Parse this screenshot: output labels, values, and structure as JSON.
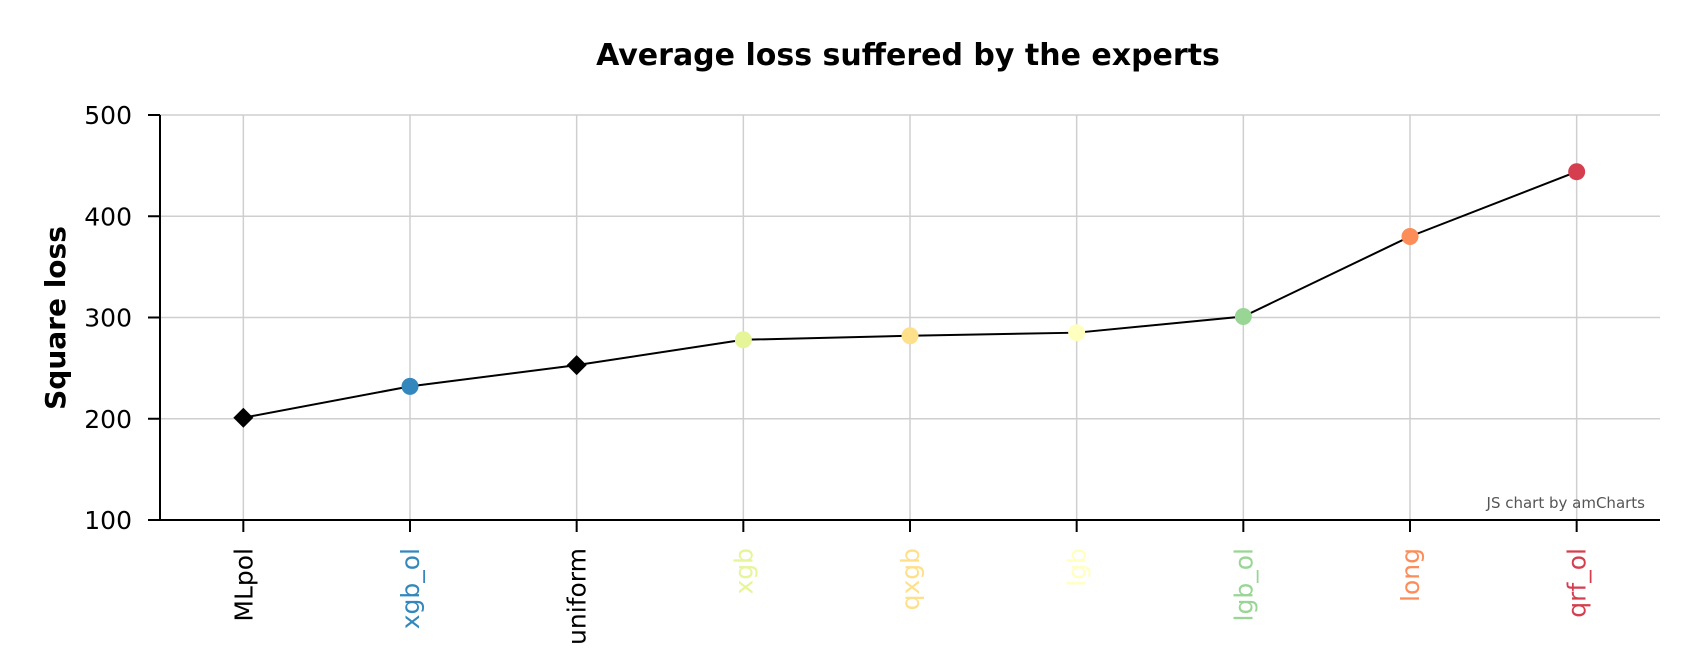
{
  "chart_data": {
    "type": "line",
    "title": "Average loss suffered by the experts",
    "xlabel": "",
    "ylabel": "Square loss",
    "ylim": [
      100,
      500
    ],
    "yticks": [
      100,
      200,
      300,
      400,
      500
    ],
    "grid": true,
    "categories": [
      "MLpol",
      "xgb_ol",
      "uniform",
      "xgb",
      "qxgb",
      "lgb",
      "lgb_ol",
      "long",
      "qrf_ol"
    ],
    "values": [
      201,
      232,
      253,
      278,
      282,
      285,
      301,
      380,
      444
    ],
    "marker_shapes": [
      "diamond",
      "circle",
      "diamond",
      "circle",
      "circle",
      "circle",
      "circle",
      "circle",
      "circle"
    ],
    "colors": [
      "#000000",
      "#3288bd",
      "#000000",
      "#e6f598",
      "#fee08b",
      "#ffffbf",
      "#99d594",
      "#fc8d59",
      "#d53e4f"
    ],
    "line_color": "#000000",
    "credit": "JS chart by amCharts"
  }
}
